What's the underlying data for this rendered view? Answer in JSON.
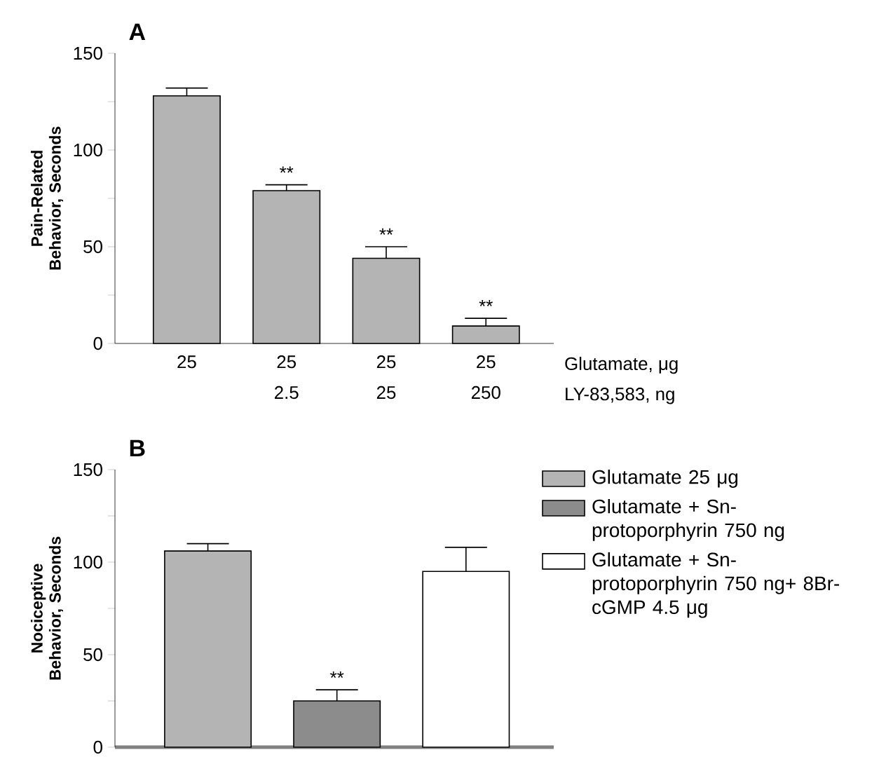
{
  "chart_data": [
    {
      "type": "bar",
      "title": "A",
      "ylabel": "Pain-Related Behavior, Seconds",
      "categories": [
        "25",
        "25 2.5",
        "25 25",
        "25 250"
      ],
      "values": [
        128,
        79,
        44,
        9
      ],
      "errors": [
        4,
        3,
        6,
        4
      ],
      "color": "#b4b4b4",
      "ylim": [
        0,
        150
      ],
      "yticks": [
        0,
        {
          "value": 25,
          "label": null
        },
        50,
        {
          "value": 75,
          "label": null
        },
        100,
        {
          "value": 125,
          "label": null
        },
        150
      ],
      "annotations": [
        {
          "text": "**",
          "y": 82
        },
        {
          "text": "**",
          "y": 50
        },
        {
          "text": "**",
          "y": 13
        },
        "Glutamate, μg",
        "LY-83,583, ng"
      ]
    },
    {
      "type": "bar",
      "title": "B",
      "ylabel": "Nociceptive Behavior, Seconds",
      "categories": [
        null,
        null,
        null
      ],
      "series": [
        {
          "name": "Glutamate 25 μg",
          "color": "#b4b4b4",
          "values": [
            106,
            null,
            null
          ],
          "errors": [
            4,
            null,
            null
          ]
        },
        {
          "name": "Glutamate + Sn-protoporphyrin 750 ng",
          "color": "#8c8c8c",
          "values": [
            null,
            25,
            null
          ],
          "errors": [
            null,
            6,
            null
          ]
        },
        {
          "name": "Glutamate + Sn-protoporphyrin 750 ng+ 8Br-cGMP 4.5 μg",
          "color": "#ffffff",
          "values": [
            null,
            null,
            95
          ],
          "errors": [
            null,
            null,
            13
          ]
        }
      ],
      "ylim": [
        0,
        150
      ],
      "yticks": [
        0,
        {
          "value": 25,
          "label": null
        },
        50,
        {
          "value": 75,
          "label": null
        },
        100,
        {
          "value": 125,
          "label": null
        },
        150
      ],
      "tick_labels": "y",
      "legend": "right",
      "annotations": [
        {
          "text": "**",
          "y": 31
        }
      ]
    }
  ]
}
